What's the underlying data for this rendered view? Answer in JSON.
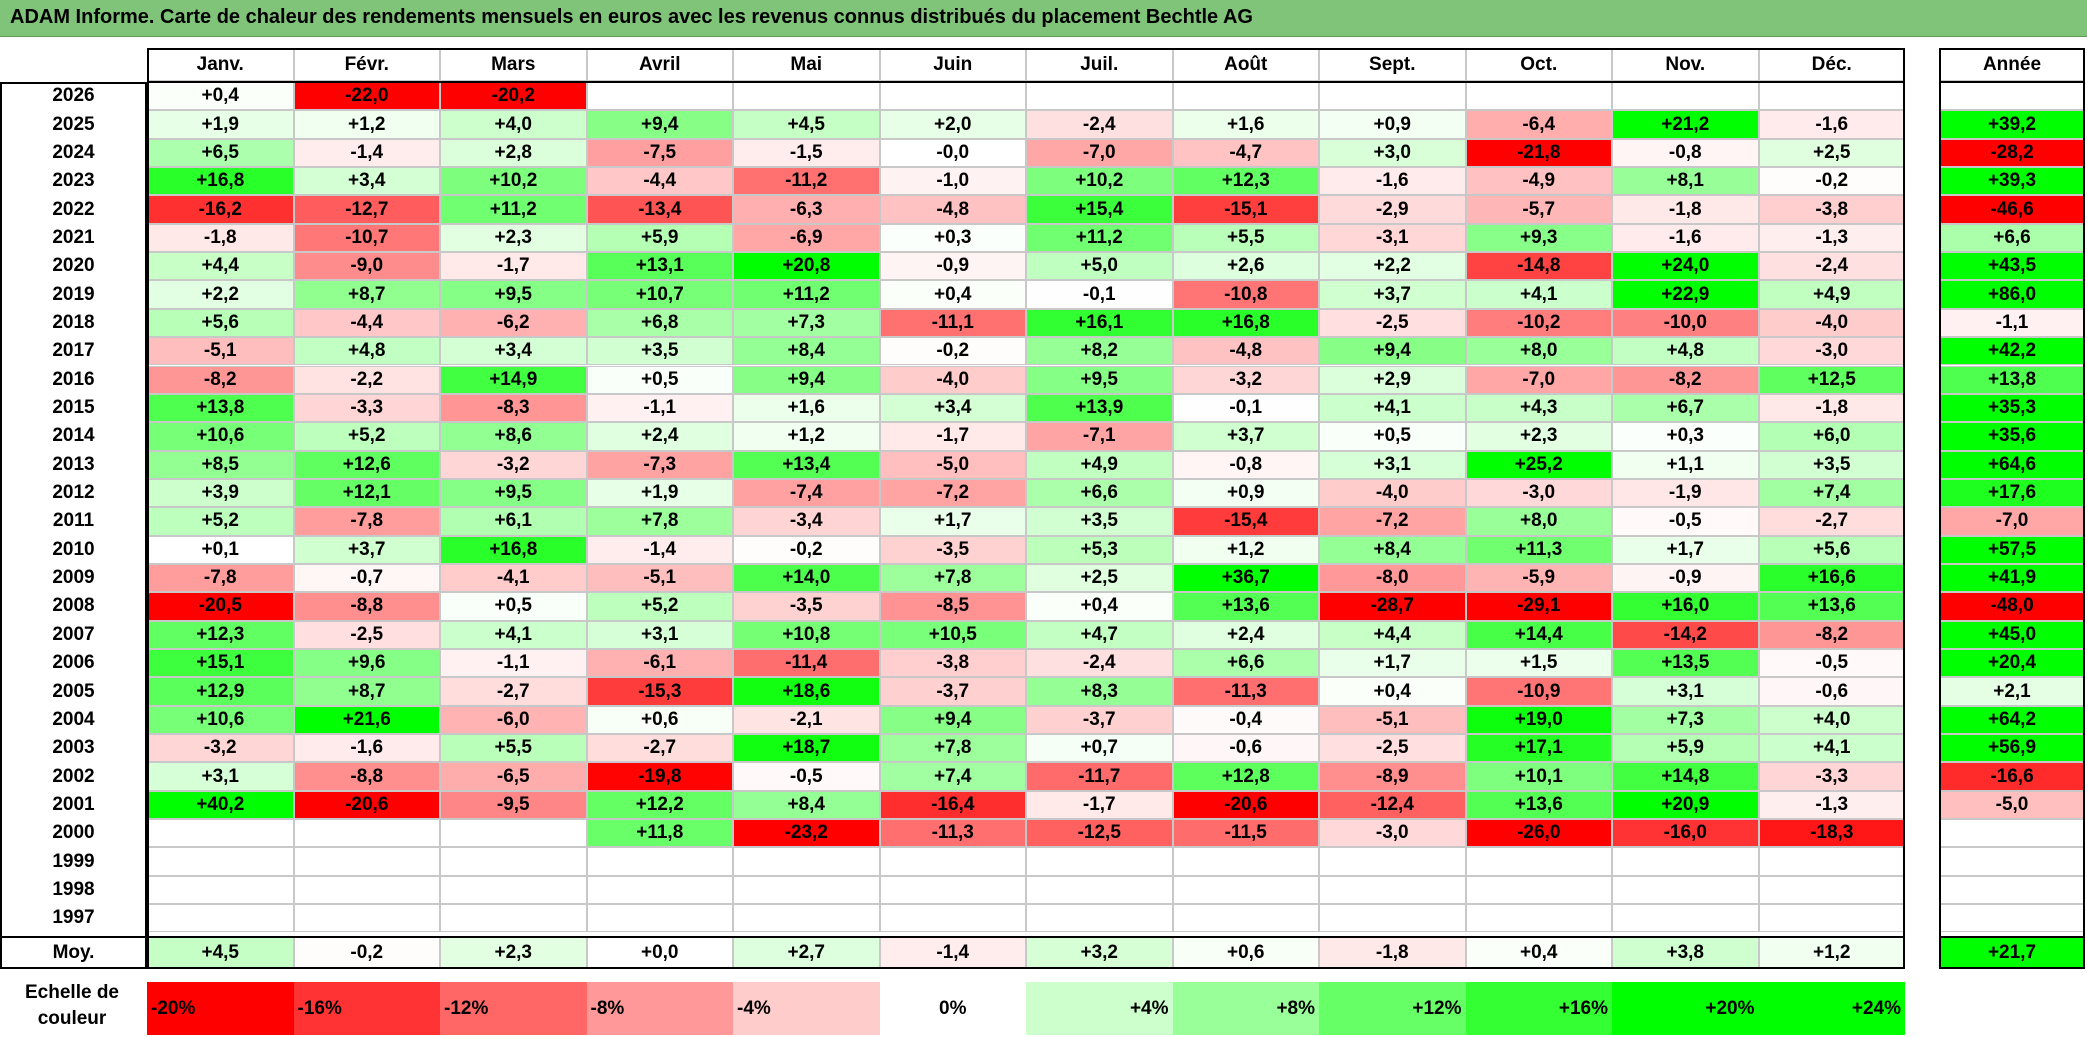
{
  "title": "ADAM Informe. Carte de chaleur des rendements mensuels en euros avec les revenus connus distribués du placement Bechtle AG",
  "chart_data": {
    "type": "heatmap",
    "months": [
      "Janv.",
      "Févr.",
      "Mars",
      "Avril",
      "Mai",
      "Juin",
      "Juil.",
      "Août",
      "Sept.",
      "Oct.",
      "Nov.",
      "Déc."
    ],
    "year_header": "Année",
    "rows": [
      {
        "year": "2026",
        "values": [
          "+0,4",
          "-22,0",
          "-20,2",
          "",
          "",
          "",
          "",
          "",
          "",
          "",
          "",
          ""
        ],
        "annual": ""
      },
      {
        "year": "2025",
        "values": [
          "+1,9",
          "+1,2",
          "+4,0",
          "+9,4",
          "+4,5",
          "+2,0",
          "-2,4",
          "+1,6",
          "+0,9",
          "-6,4",
          "+21,2",
          "-1,6"
        ],
        "annual": "+39,2"
      },
      {
        "year": "2024",
        "values": [
          "+6,5",
          "-1,4",
          "+2,8",
          "-7,5",
          "-1,5",
          "-0,0",
          "-7,0",
          "-4,7",
          "+3,0",
          "-21,8",
          "-0,8",
          "+2,5"
        ],
        "annual": "-28,2"
      },
      {
        "year": "2023",
        "values": [
          "+16,8",
          "+3,4",
          "+10,2",
          "-4,4",
          "-11,2",
          "-1,0",
          "+10,2",
          "+12,3",
          "-1,6",
          "-4,9",
          "+8,1",
          "-0,2"
        ],
        "annual": "+39,3"
      },
      {
        "year": "2022",
        "values": [
          "-16,2",
          "-12,7",
          "+11,2",
          "-13,4",
          "-6,3",
          "-4,8",
          "+15,4",
          "-15,1",
          "-2,9",
          "-5,7",
          "-1,8",
          "-3,8"
        ],
        "annual": "-46,6"
      },
      {
        "year": "2021",
        "values": [
          "-1,8",
          "-10,7",
          "+2,3",
          "+5,9",
          "-6,9",
          "+0,3",
          "+11,2",
          "+5,5",
          "-3,1",
          "+9,3",
          "-1,6",
          "-1,3"
        ],
        "annual": "+6,6"
      },
      {
        "year": "2020",
        "values": [
          "+4,4",
          "-9,0",
          "-1,7",
          "+13,1",
          "+20,8",
          "-0,9",
          "+5,0",
          "+2,6",
          "+2,2",
          "-14,8",
          "+24,0",
          "-2,4"
        ],
        "annual": "+43,5"
      },
      {
        "year": "2019",
        "values": [
          "+2,2",
          "+8,7",
          "+9,5",
          "+10,7",
          "+11,2",
          "+0,4",
          "-0,1",
          "-10,8",
          "+3,7",
          "+4,1",
          "+22,9",
          "+4,9"
        ],
        "annual": "+86,0"
      },
      {
        "year": "2018",
        "values": [
          "+5,6",
          "-4,4",
          "-6,2",
          "+6,8",
          "+7,3",
          "-11,1",
          "+16,1",
          "+16,8",
          "-2,5",
          "-10,2",
          "-10,0",
          "-4,0"
        ],
        "annual": "-1,1"
      },
      {
        "year": "2017",
        "values": [
          "-5,1",
          "+4,8",
          "+3,4",
          "+3,5",
          "+8,4",
          "-0,2",
          "+8,2",
          "-4,8",
          "+9,4",
          "+8,0",
          "+4,8",
          "-3,0"
        ],
        "annual": "+42,2"
      },
      {
        "year": "2016",
        "values": [
          "-8,2",
          "-2,2",
          "+14,9",
          "+0,5",
          "+9,4",
          "-4,0",
          "+9,5",
          "-3,2",
          "+2,9",
          "-7,0",
          "-8,2",
          "+12,5"
        ],
        "annual": "+13,8"
      },
      {
        "year": "2015",
        "values": [
          "+13,8",
          "-3,3",
          "-8,3",
          "-1,1",
          "+1,6",
          "+3,4",
          "+13,9",
          "-0,1",
          "+4,1",
          "+4,3",
          "+6,7",
          "-1,8"
        ],
        "annual": "+35,3"
      },
      {
        "year": "2014",
        "values": [
          "+10,6",
          "+5,2",
          "+8,6",
          "+2,4",
          "+1,2",
          "-1,7",
          "-7,1",
          "+3,7",
          "+0,5",
          "+2,3",
          "+0,3",
          "+6,0"
        ],
        "annual": "+35,6"
      },
      {
        "year": "2013",
        "values": [
          "+8,5",
          "+12,6",
          "-3,2",
          "-7,3",
          "+13,4",
          "-5,0",
          "+4,9",
          "-0,8",
          "+3,1",
          "+25,2",
          "+1,1",
          "+3,5"
        ],
        "annual": "+64,6"
      },
      {
        "year": "2012",
        "values": [
          "+3,9",
          "+12,1",
          "+9,5",
          "+1,9",
          "-7,4",
          "-7,2",
          "+6,6",
          "+0,9",
          "-4,0",
          "-3,0",
          "-1,9",
          "+7,4"
        ],
        "annual": "+17,6"
      },
      {
        "year": "2011",
        "values": [
          "+5,2",
          "-7,8",
          "+6,1",
          "+7,8",
          "-3,4",
          "+1,7",
          "+3,5",
          "-15,4",
          "-7,2",
          "+8,0",
          "-0,5",
          "-2,7"
        ],
        "annual": "-7,0"
      },
      {
        "year": "2010",
        "values": [
          "+0,1",
          "+3,7",
          "+16,8",
          "-1,4",
          "-0,2",
          "-3,5",
          "+5,3",
          "+1,2",
          "+8,4",
          "+11,3",
          "+1,7",
          "+5,6"
        ],
        "annual": "+57,5"
      },
      {
        "year": "2009",
        "values": [
          "-7,8",
          "-0,7",
          "-4,1",
          "-5,1",
          "+14,0",
          "+7,8",
          "+2,5",
          "+36,7",
          "-8,0",
          "-5,9",
          "-0,9",
          "+16,6"
        ],
        "annual": "+41,9"
      },
      {
        "year": "2008",
        "values": [
          "-20,5",
          "-8,8",
          "+0,5",
          "+5,2",
          "-3,5",
          "-8,5",
          "+0,4",
          "+13,6",
          "-28,7",
          "-29,1",
          "+16,0",
          "+13,6"
        ],
        "annual": "-48,0"
      },
      {
        "year": "2007",
        "values": [
          "+12,3",
          "-2,5",
          "+4,1",
          "+3,1",
          "+10,8",
          "+10,5",
          "+4,7",
          "+2,4",
          "+4,4",
          "+14,4",
          "-14,2",
          "-8,2"
        ],
        "annual": "+45,0"
      },
      {
        "year": "2006",
        "values": [
          "+15,1",
          "+9,6",
          "-1,1",
          "-6,1",
          "-11,4",
          "-3,8",
          "-2,4",
          "+6,6",
          "+1,7",
          "+1,5",
          "+13,5",
          "-0,5"
        ],
        "annual": "+20,4"
      },
      {
        "year": "2005",
        "values": [
          "+12,9",
          "+8,7",
          "-2,7",
          "-15,3",
          "+18,6",
          "-3,7",
          "+8,3",
          "-11,3",
          "+0,4",
          "-10,9",
          "+3,1",
          "-0,6"
        ],
        "annual": "+2,1"
      },
      {
        "year": "2004",
        "values": [
          "+10,6",
          "+21,6",
          "-6,0",
          "+0,6",
          "-2,1",
          "+9,4",
          "-3,7",
          "-0,4",
          "-5,1",
          "+19,0",
          "+7,3",
          "+4,0"
        ],
        "annual": "+64,2"
      },
      {
        "year": "2003",
        "values": [
          "-3,2",
          "-1,6",
          "+5,5",
          "-2,7",
          "+18,7",
          "+7,8",
          "+0,7",
          "-0,6",
          "-2,5",
          "+17,1",
          "+5,9",
          "+4,1"
        ],
        "annual": "+56,9"
      },
      {
        "year": "2002",
        "values": [
          "+3,1",
          "-8,8",
          "-6,5",
          "-19,8",
          "-0,5",
          "+7,4",
          "-11,7",
          "+12,8",
          "-8,9",
          "+10,1",
          "+14,8",
          "-3,3"
        ],
        "annual": "-16,6"
      },
      {
        "year": "2001",
        "values": [
          "+40,2",
          "-20,6",
          "-9,5",
          "+12,2",
          "+8,4",
          "-16,4",
          "-1,7",
          "-20,6",
          "-12,4",
          "+13,6",
          "+20,9",
          "-1,3"
        ],
        "annual": "-5,0"
      },
      {
        "year": "2000",
        "values": [
          "",
          "",
          "",
          "+11,8",
          "-23,2",
          "-11,3",
          "-12,5",
          "-11,5",
          "-3,0",
          "-26,0",
          "-16,0",
          "-18,3"
        ],
        "annual": ""
      },
      {
        "year": "1999",
        "values": [
          "",
          "",
          "",
          "",
          "",
          "",
          "",
          "",
          "",
          "",
          "",
          ""
        ],
        "annual": ""
      },
      {
        "year": "1998",
        "values": [
          "",
          "",
          "",
          "",
          "",
          "",
          "",
          "",
          "",
          "",
          "",
          ""
        ],
        "annual": ""
      },
      {
        "year": "1997",
        "values": [
          "",
          "",
          "",
          "",
          "",
          "",
          "",
          "",
          "",
          "",
          "",
          ""
        ],
        "annual": ""
      }
    ],
    "average": {
      "label": "Moy.",
      "values": [
        "+4,5",
        "-0,2",
        "+2,3",
        "+0,0",
        "+2,7",
        "-1,4",
        "+3,2",
        "+0,6",
        "-1,8",
        "+0,4",
        "+3,8",
        "+1,2"
      ],
      "annual": "+21,7"
    },
    "color_scale": {
      "title_line1": "Echelle de",
      "title_line2": "couleur",
      "steps": [
        {
          "label": "-20%",
          "value": -20,
          "color": "#ff0000"
        },
        {
          "label": "-16%",
          "value": -16,
          "color": "#ff3333"
        },
        {
          "label": "-12%",
          "value": -12,
          "color": "#ff6666"
        },
        {
          "label": "-8%",
          "value": -8,
          "color": "#ff9999"
        },
        {
          "label": "-4%",
          "value": -4,
          "color": "#ffcccc"
        },
        {
          "label": "0%",
          "value": 0,
          "color": "#ffffff"
        },
        {
          "label": "+4%",
          "value": 4,
          "color": "#ccffcc"
        },
        {
          "label": "+8%",
          "value": 8,
          "color": "#99ff99"
        },
        {
          "label": "+12%",
          "value": 12,
          "color": "#66ff66"
        },
        {
          "label": "+16%",
          "value": 16,
          "color": "#33ff33"
        },
        {
          "label": "+20%",
          "value": 20,
          "color": "#00ff00"
        },
        {
          "label": "+24%",
          "value": 24,
          "color": "#00ff00"
        }
      ]
    }
  }
}
